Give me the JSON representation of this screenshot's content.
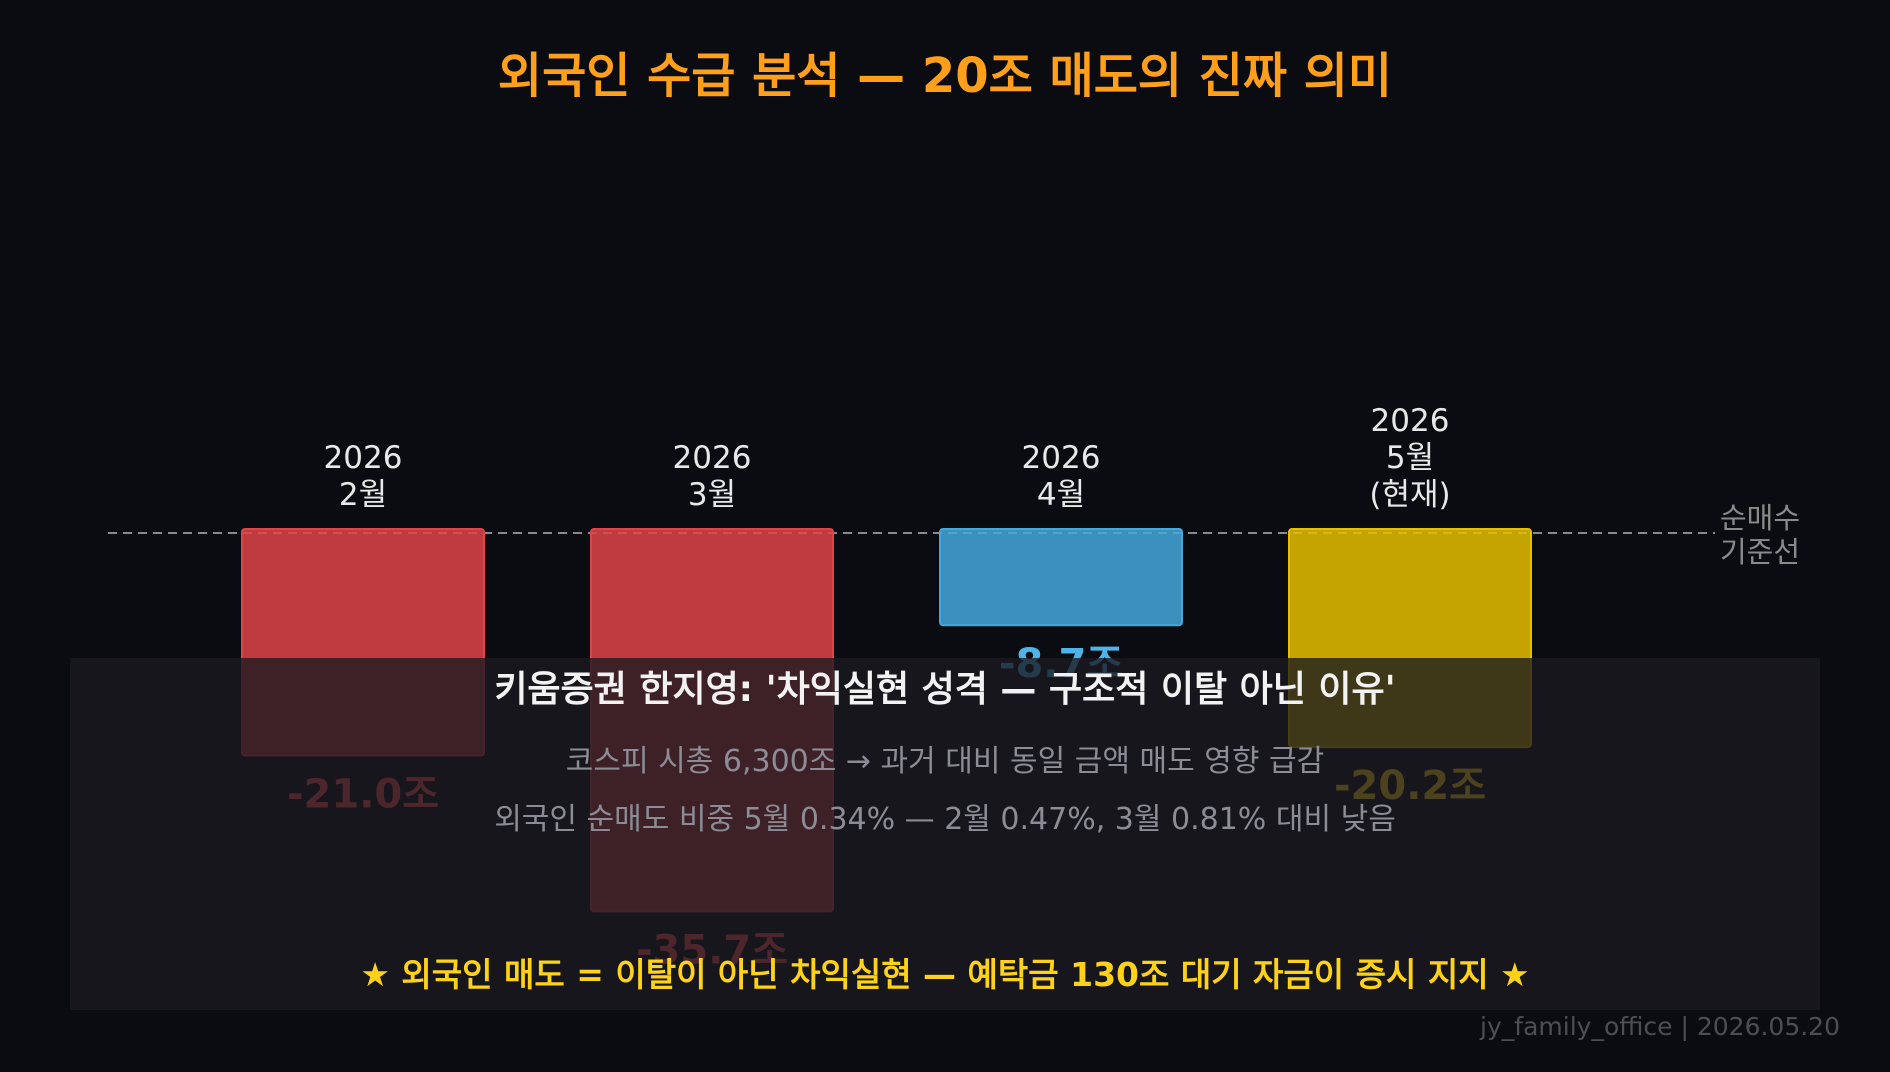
{
  "chart_data": {
    "type": "bar",
    "title": "외국인 수급 분석 — 20조 매도의 진짜 의미",
    "categories": [
      [
        "2026",
        "2월"
      ],
      [
        "2026",
        "3월"
      ],
      [
        "2026",
        "4월"
      ],
      [
        "2026",
        "5월",
        "(현재)"
      ]
    ],
    "values": [
      -21.0,
      -35.7,
      -8.7,
      -20.2
    ],
    "value_labels": [
      "-21.0조",
      "-35.7조",
      "-8.7조",
      "-20.2조"
    ],
    "bar_colors": [
      "#e04448",
      "#e04448",
      "#44a8dc",
      "#e6c000"
    ],
    "label_colors": [
      "#ff5555",
      "#ff5555",
      "#4fb3e6",
      "#ffd21a"
    ],
    "baseline_label": [
      "순매수",
      "기준선"
    ],
    "ylim": [
      -40,
      0
    ],
    "grid": false,
    "legend": "none"
  },
  "annotation": {
    "heading": "키움증권 한지영: '차익실현 성격 — 구조적 이탈 아닌 이유'",
    "line1": "코스피 시총 6,300조 → 과거 대비 동일 금액 매도 영향 급감",
    "line2": "외국인 순매도 비중 5월 0.34% — 2월 0.47%, 3월 0.81% 대비 낮음",
    "conclusion": "★ 외국인 매도 = 이탈이 아닌 차익실현 — 예탁금 130조 대기 자금이 증시 지지 ★"
  },
  "footer": "jy_family_office | 2026.05.20"
}
